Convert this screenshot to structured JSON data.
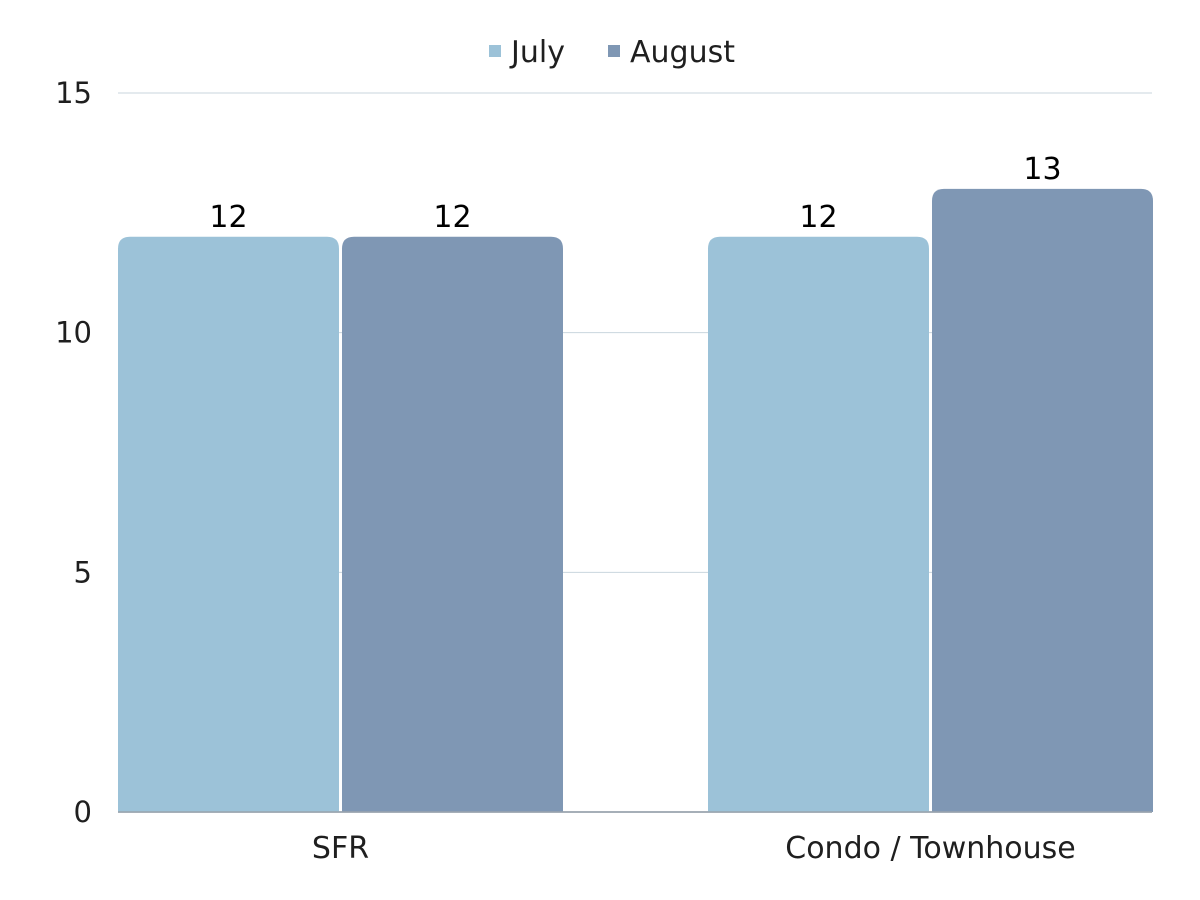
{
  "chart_data": {
    "type": "bar",
    "title": "",
    "xlabel": "",
    "ylabel": "",
    "categories": [
      "SFR",
      "Condo / Townhouse"
    ],
    "series": [
      {
        "name": "July",
        "values": [
          12,
          12
        ],
        "color": "#9cc2d8"
      },
      {
        "name": "August",
        "values": [
          12,
          13
        ],
        "color": "#7f97b4"
      }
    ],
    "ylim": [
      0,
      15
    ],
    "yticks": [
      0,
      5,
      10,
      15
    ],
    "grid": true,
    "legend": "top-center",
    "data_labels": true
  }
}
